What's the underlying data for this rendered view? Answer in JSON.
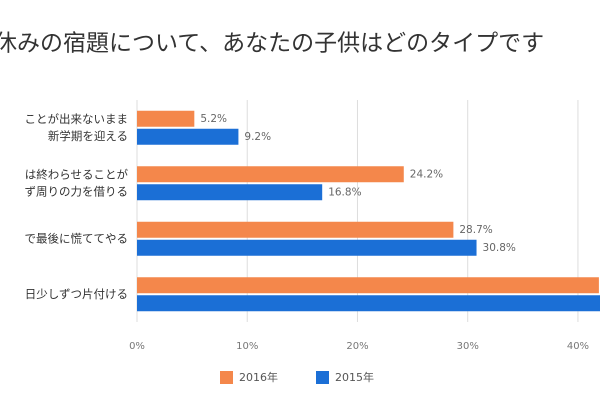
{
  "chart_data": {
    "type": "bar",
    "orientation": "horizontal",
    "title": "休みの宿題について、あなたの子供はどのタイプです",
    "categories": [
      [
        "ことが出来ないまま",
        "新学期を迎える"
      ],
      [
        "は終わらせることが",
        "ず周りの力を借りる"
      ],
      [
        "で最後に慌ててやる"
      ],
      [
        "日少しずつ片付ける"
      ]
    ],
    "series": [
      {
        "name": "2016年",
        "color": "#f4874b",
        "values": [
          5.2,
          24.2,
          28.7,
          41.9
        ],
        "value_labels": [
          "5.2%",
          "24.2%",
          "28.7%",
          null
        ]
      },
      {
        "name": "2015年",
        "color": "#1b6fd6",
        "values": [
          9.2,
          16.8,
          30.8,
          43.2
        ],
        "value_labels": [
          "9.2%",
          "16.8%",
          "30.8%",
          null
        ]
      }
    ],
    "xlim": [
      0,
      42
    ],
    "xticks": [
      {
        "value": 0,
        "label": "0%"
      },
      {
        "value": 10,
        "label": "10%"
      },
      {
        "value": 20,
        "label": "20%"
      },
      {
        "value": 30,
        "label": "30%"
      },
      {
        "value": 40,
        "label": "40%"
      }
    ],
    "grid": true,
    "legend": "bottom"
  }
}
